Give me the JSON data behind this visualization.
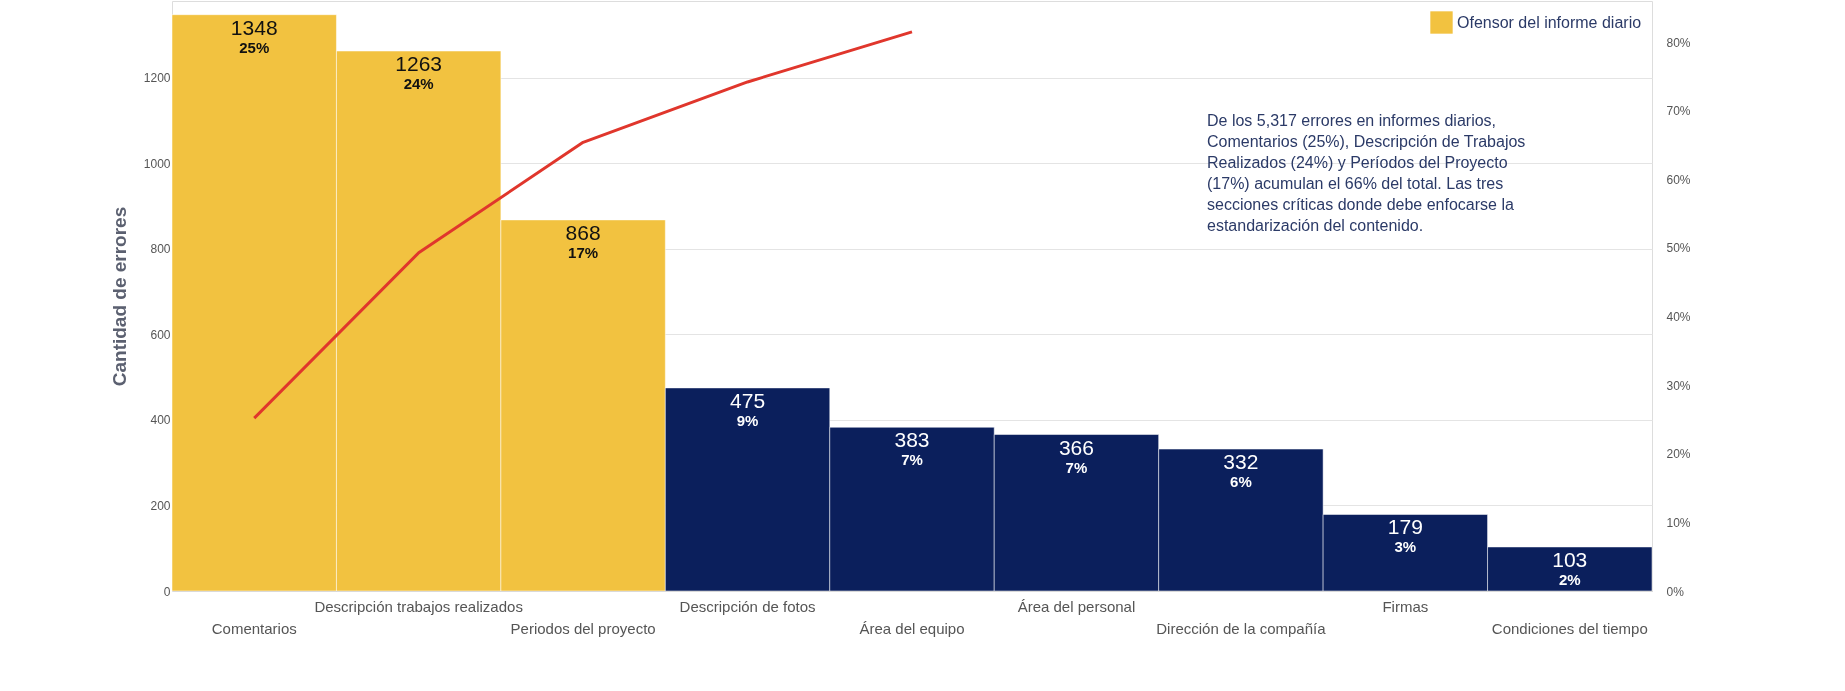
{
  "chart_data": {
    "type": "bar",
    "ylabel": "Cantidad de errores",
    "categories": [
      "Comentarios",
      "Descripción trabajos realizados",
      "Periodos del proyecto",
      "Descripción de fotos",
      "Área del equipo",
      "Área del personal",
      "Dirección de la compañía",
      "Firmas",
      "Condiciones del tiempo"
    ],
    "tick_labels": true,
    "series": [
      {
        "name": "Ofensor del informe diario",
        "color": "#f2c240",
        "values": [
          1348,
          1263,
          868,
          null,
          null,
          null,
          null,
          null,
          null
        ],
        "value_labels": [
          "1348",
          "1263",
          "868",
          null,
          null,
          null,
          null,
          null,
          null
        ]
      },
      {
        "color": "#0b1f5c",
        "values": [
          null,
          null,
          null,
          475,
          383,
          366,
          332,
          179,
          103
        ],
        "value_labels": [
          null,
          null,
          null,
          "475",
          "383",
          "366",
          "332",
          "179",
          "103"
        ]
      },
      {
        "type": "line",
        "axis": "y2",
        "color": "#e0362c",
        "values": [
          25.2,
          49.3,
          65.4,
          74.2,
          81.5,
          null,
          null,
          null,
          null
        ]
      }
    ],
    "ylim": [
      0,
      1380
    ],
    "yticks": [
      0,
      200,
      400,
      600,
      800,
      1000,
      1200
    ],
    "y2lim": [
      0,
      86
    ],
    "y2ticks": [
      {
        "value": 0,
        "label": "0%"
      },
      {
        "value": 10,
        "label": "10%"
      },
      {
        "value": 20,
        "label": "20%"
      },
      {
        "value": 30,
        "label": "30%"
      },
      {
        "value": 40,
        "label": "40%"
      },
      {
        "value": 50,
        "label": "50%"
      },
      {
        "value": 60,
        "label": "60%"
      },
      {
        "value": 70,
        "label": "70%"
      },
      {
        "value": 80,
        "label": "80%"
      }
    ],
    "grid": "y",
    "legend": "top right",
    "marker": "none",
    "line_style": "solid",
    "annotations": [
      {
        "text": "25%",
        "x": "Comentarios",
        "y": 1348
      },
      {
        "text": "24%",
        "x": "Descripción trabajos realizados",
        "y": 1263
      },
      {
        "text": "17%",
        "x": "Periodos del proyecto",
        "y": 868
      },
      {
        "text": "9%",
        "x": "Descripción de fotos",
        "y": 475
      },
      {
        "text": "7%",
        "x": "Área del equipo",
        "y": 383
      },
      {
        "text": "7%",
        "x": "Área del personal",
        "y": 366
      },
      {
        "text": "6%",
        "x": "Dirección de la compañía",
        "y": 332
      },
      {
        "text": "3%",
        "x": "Firmas",
        "y": 179
      },
      {
        "text": "2%",
        "x": "Condiciones del tiempo",
        "y": 103
      },
      "De los 5,317 errores en informes diarios, Comentarios (25%), Descripción de Trabajos Realizados (24%) y Períodos del Proyecto (17%) acumulan el 66% del total. Las tres secciones críticas donde debe enfocarse la estandarización del contenido."
    ]
  }
}
